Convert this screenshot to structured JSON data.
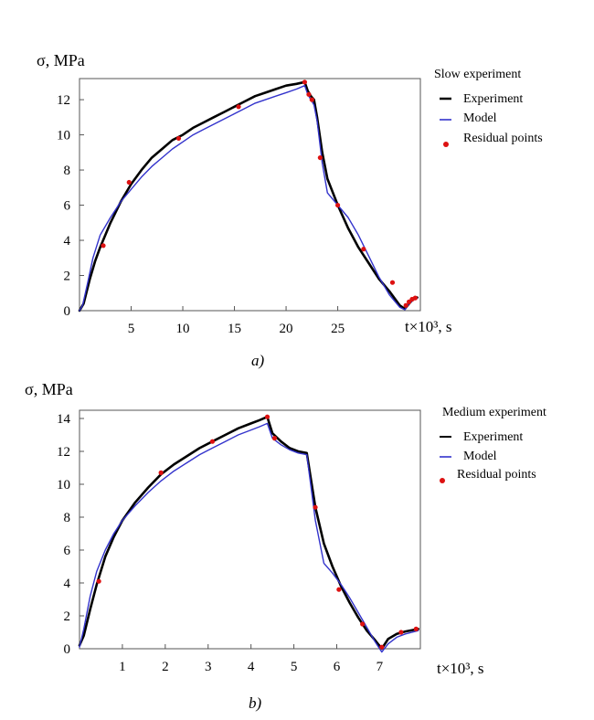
{
  "chart_data": [
    {
      "id": "a",
      "type": "line",
      "ylabel": "σ, MPa",
      "xlabel": "t×10³, s",
      "caption": "a)",
      "ylim": [
        0,
        13.2
      ],
      "xlim": [
        0,
        33
      ],
      "xticks": [
        "5",
        "10",
        "15",
        "20",
        "25"
      ],
      "xtick_values": [
        5,
        10,
        15,
        20,
        25
      ],
      "yticks": [
        "0",
        "2",
        "4",
        "6",
        "8",
        "10",
        "12"
      ],
      "ytick_values": [
        0,
        2,
        4,
        6,
        8,
        10,
        12
      ],
      "legend": {
        "title": "Slow experiment",
        "items": [
          "Experiment",
          "Model",
          "Residual points"
        ]
      },
      "colors": {
        "experiment": "#000000",
        "model": "#3333cc",
        "residual": "#dd1111"
      },
      "series": [
        {
          "name": "Experiment",
          "x": [
            0,
            0.4,
            1,
            1.5,
            2,
            3,
            4,
            5,
            6,
            7,
            8,
            9,
            10,
            11,
            12,
            13,
            14,
            15,
            16,
            17,
            18,
            19,
            20,
            21,
            21.8,
            22.1,
            22.4,
            22.7,
            23,
            23.5,
            24,
            25,
            26,
            27,
            28,
            29,
            30,
            31,
            31.5,
            31.9,
            32.3,
            32.7
          ],
          "y": [
            0,
            0.4,
            1.8,
            2.8,
            3.6,
            5.0,
            6.2,
            7.2,
            8.0,
            8.7,
            9.2,
            9.7,
            10.0,
            10.4,
            10.7,
            11.0,
            11.3,
            11.6,
            11.9,
            12.2,
            12.4,
            12.6,
            12.8,
            12.9,
            13.0,
            12.5,
            12.2,
            12.0,
            11.0,
            9.0,
            7.5,
            6.0,
            4.7,
            3.6,
            2.7,
            1.8,
            1.1,
            0.3,
            0.1,
            0.4,
            0.65,
            0.75
          ]
        },
        {
          "name": "Model",
          "x": [
            0,
            0.3,
            0.8,
            1.3,
            2,
            3,
            4,
            5,
            6,
            7,
            8,
            9,
            10,
            11,
            12,
            13,
            14,
            15,
            16,
            17,
            18,
            19,
            20,
            21,
            21.8,
            22.1,
            22.4,
            22.7,
            23,
            23.5,
            24,
            25,
            26,
            27,
            28,
            29,
            30,
            31,
            31.5,
            31.9,
            32.3,
            32.7
          ],
          "y": [
            0,
            0.3,
            1.6,
            3.0,
            4.3,
            5.3,
            6.2,
            6.9,
            7.6,
            8.2,
            8.7,
            9.2,
            9.6,
            10.0,
            10.3,
            10.6,
            10.9,
            11.2,
            11.5,
            11.8,
            12.0,
            12.2,
            12.4,
            12.6,
            12.8,
            12.3,
            12.0,
            11.7,
            10.8,
            8.4,
            6.7,
            6.0,
            5.3,
            4.3,
            3.1,
            1.9,
            0.9,
            0.2,
            0.05,
            0.4,
            0.6,
            0.7
          ]
        }
      ],
      "residual_points": {
        "x": [
          2.3,
          4.8,
          9.6,
          15.4,
          21.8,
          22.2,
          22.5,
          23.3,
          25.0,
          27.5,
          30.3,
          31.6,
          31.9,
          32.2,
          32.5
        ],
        "y": [
          3.7,
          7.3,
          9.8,
          11.6,
          13.0,
          12.3,
          12.0,
          8.7,
          6.0,
          3.5,
          1.6,
          0.3,
          0.5,
          0.65,
          0.72
        ]
      }
    },
    {
      "id": "b",
      "type": "line",
      "ylabel": "σ, MPa",
      "xlabel": "t×10³, s",
      "caption": "b)",
      "ylim": [
        0,
        14.5
      ],
      "xlim": [
        0,
        7.95
      ],
      "xticks": [
        "1",
        "2",
        "3",
        "4",
        "5",
        "6",
        "7"
      ],
      "xtick_values": [
        1,
        2,
        3,
        4,
        5,
        6,
        7
      ],
      "yticks": [
        "0",
        "2",
        "4",
        "6",
        "8",
        "10",
        "12",
        "14"
      ],
      "ytick_values": [
        0,
        2,
        4,
        6,
        8,
        10,
        12,
        14
      ],
      "legend": {
        "title": "Medium experiment",
        "items": [
          "Experiment",
          "Model",
          "Residual points"
        ]
      },
      "colors": {
        "experiment": "#000000",
        "model": "#3333cc",
        "residual": "#dd1111"
      },
      "series": [
        {
          "name": "Experiment",
          "x": [
            0,
            0.1,
            0.25,
            0.4,
            0.6,
            0.8,
            1.0,
            1.3,
            1.6,
            1.9,
            2.2,
            2.5,
            2.8,
            3.1,
            3.4,
            3.7,
            4.0,
            4.2,
            4.38,
            4.5,
            4.7,
            4.9,
            5.1,
            5.3,
            5.5,
            5.7,
            5.9,
            6.1,
            6.3,
            6.5,
            6.7,
            6.9,
            7.05,
            7.2,
            7.4,
            7.6,
            7.9
          ],
          "y": [
            0.2,
            0.8,
            2.4,
            3.9,
            5.6,
            6.8,
            7.8,
            8.9,
            9.8,
            10.6,
            11.2,
            11.7,
            12.2,
            12.6,
            13.0,
            13.4,
            13.7,
            13.9,
            14.1,
            13.1,
            12.6,
            12.2,
            12.0,
            11.9,
            8.6,
            6.4,
            5.0,
            3.8,
            2.8,
            1.9,
            1.1,
            0.5,
            0.0,
            0.6,
            0.9,
            1.05,
            1.2
          ]
        },
        {
          "name": "Model",
          "x": [
            0,
            0.1,
            0.25,
            0.4,
            0.6,
            0.8,
            1.0,
            1.3,
            1.6,
            1.9,
            2.2,
            2.5,
            2.8,
            3.1,
            3.4,
            3.7,
            4.0,
            4.2,
            4.38,
            4.5,
            4.7,
            4.9,
            5.1,
            5.3,
            5.5,
            5.7,
            5.9,
            6.1,
            6.3,
            6.5,
            6.7,
            6.9,
            7.05,
            7.2,
            7.4,
            7.6,
            7.9
          ],
          "y": [
            0.1,
            1.2,
            3.2,
            4.7,
            6.0,
            7.0,
            7.8,
            8.7,
            9.5,
            10.2,
            10.8,
            11.3,
            11.8,
            12.2,
            12.6,
            13.0,
            13.3,
            13.5,
            13.7,
            12.8,
            12.4,
            12.1,
            11.9,
            11.8,
            7.8,
            5.2,
            4.6,
            3.9,
            3.1,
            2.2,
            1.3,
            0.4,
            -0.2,
            0.3,
            0.7,
            0.9,
            1.1
          ]
        }
      ],
      "residual_points": {
        "x": [
          0.45,
          1.9,
          3.1,
          4.38,
          4.55,
          5.5,
          6.05,
          6.6,
          7.05,
          7.5,
          7.85
        ],
        "y": [
          4.1,
          10.7,
          12.6,
          14.1,
          12.8,
          8.6,
          3.6,
          1.5,
          0.1,
          1.0,
          1.2
        ]
      }
    }
  ]
}
